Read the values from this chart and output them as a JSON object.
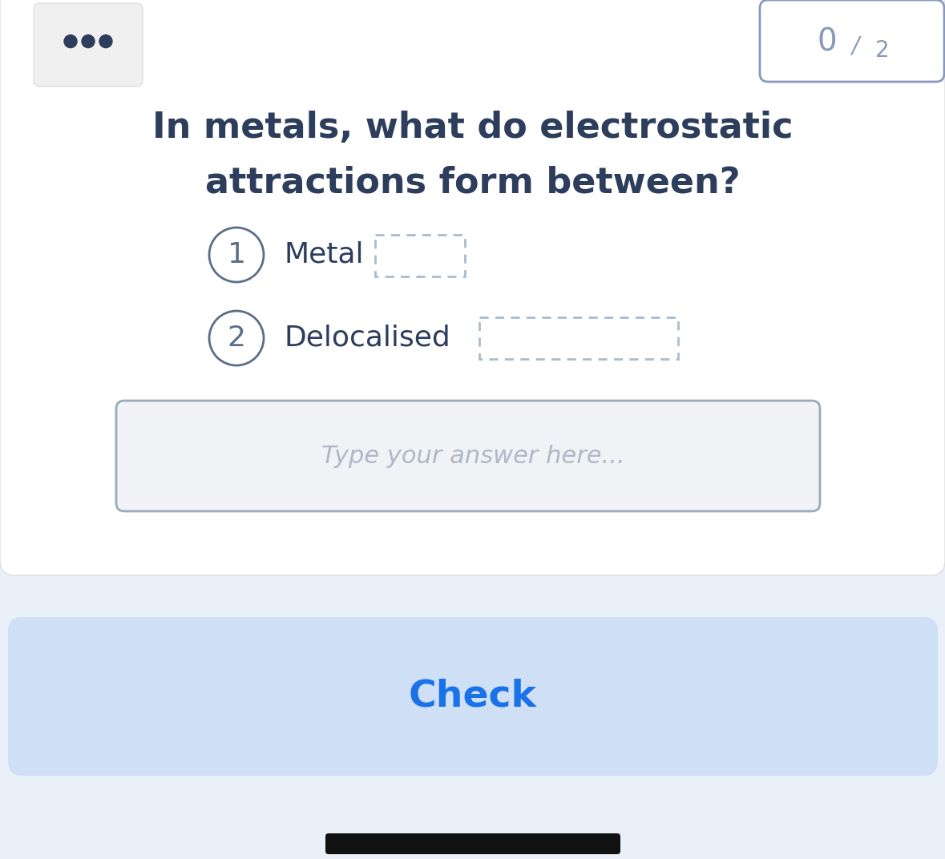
{
  "bg_color": "#eaf0f8",
  "card_color": "#ffffff",
  "title_text1": "In metals, what do electrostatic",
  "title_text2": "attractions form between?",
  "title_color": "#2d3d5c",
  "title_fontsize": 32,
  "score_text": "0",
  "score_slash": "/",
  "score_total": "2",
  "score_color": "#8899bb",
  "item1_number": "1",
  "item1_label": "Metal",
  "item2_number": "2",
  "item2_label": "Delocalised",
  "item_circle_color": "#5a6e8a",
  "item_label_color": "#2d3d5c",
  "item_fontsize": 26,
  "dashed_box_color": "#aabbcc",
  "input_placeholder": "Type your answer here...",
  "input_placeholder_color": "#b0b8c8",
  "input_bg": "#f0f2f5",
  "input_border_color": "#9aaabb",
  "check_btn_bg": "#cfdff5",
  "check_btn_text": "Check",
  "check_btn_color": "#1a72e8",
  "check_btn_fontsize": 34,
  "menu_dots_color": "#2d3d5c",
  "bottom_bar_color": "#111111",
  "ellipsis_box_color": "#f0f0f0",
  "ellipsis_border_color": "#dddddd"
}
